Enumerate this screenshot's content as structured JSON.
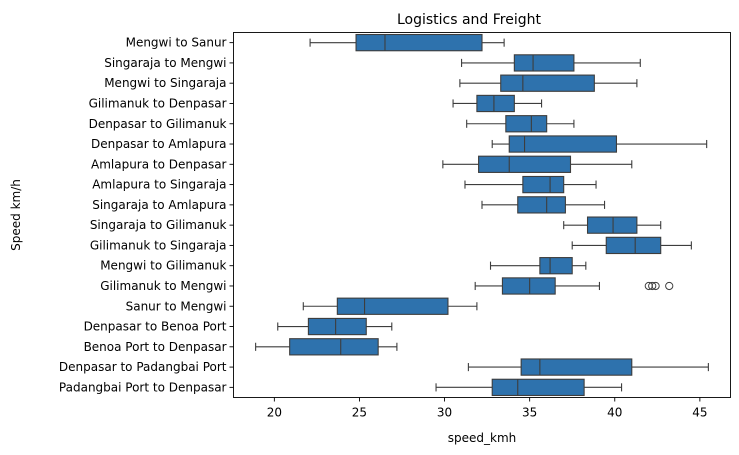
{
  "chart_data": {
    "type": "boxplot",
    "orientation": "horizontal",
    "title": "Logistics and Freight",
    "xlabel": "speed_kmh",
    "ylabel": "Speed km/h",
    "xlim": [
      17.6,
      46.8
    ],
    "xticks": [
      20,
      25,
      30,
      35,
      40,
      45
    ],
    "grid": false,
    "colors": {
      "box_fill": "#2e72ad",
      "line": "#3d3d3d"
    },
    "categories": [
      "Mengwi to Sanur",
      "Singaraja to Mengwi",
      "Mengwi to Singaraja",
      "Gilimanuk to Denpasar",
      "Denpasar to Gilimanuk",
      "Denpasar to Amlapura",
      "Amlapura to Denpasar",
      "Amlapura to Singaraja",
      "Singaraja to Amlapura",
      "Singaraja to Gilimanuk",
      "Gilimanuk to Singaraja",
      "Mengwi to Gilimanuk",
      "Gilimanuk to Mengwi",
      "Sanur to Mengwi",
      "Denpasar to Benoa Port",
      "Benoa Port to Denpasar",
      "Denpasar to Padangbai Port",
      "Padangbai Port to Denpasar"
    ],
    "boxes": [
      {
        "min": 22.1,
        "q1": 24.8,
        "median": 26.5,
        "q3": 32.2,
        "max": 33.5,
        "outliers": []
      },
      {
        "min": 31.0,
        "q1": 34.1,
        "median": 35.2,
        "q3": 37.6,
        "max": 41.5,
        "outliers": []
      },
      {
        "min": 30.9,
        "q1": 33.3,
        "median": 34.6,
        "q3": 38.8,
        "max": 41.3,
        "outliers": []
      },
      {
        "min": 30.5,
        "q1": 31.9,
        "median": 32.9,
        "q3": 34.1,
        "max": 35.7,
        "outliers": []
      },
      {
        "min": 31.3,
        "q1": 33.6,
        "median": 35.1,
        "q3": 36.0,
        "max": 37.6,
        "outliers": []
      },
      {
        "min": 32.8,
        "q1": 33.8,
        "median": 34.7,
        "q3": 40.1,
        "max": 45.4,
        "outliers": []
      },
      {
        "min": 29.9,
        "q1": 32.0,
        "median": 33.8,
        "q3": 37.4,
        "max": 41.0,
        "outliers": []
      },
      {
        "min": 31.2,
        "q1": 34.6,
        "median": 36.2,
        "q3": 37.0,
        "max": 38.9,
        "outliers": []
      },
      {
        "min": 32.2,
        "q1": 34.3,
        "median": 36.0,
        "q3": 37.1,
        "max": 39.4,
        "outliers": []
      },
      {
        "min": 37.0,
        "q1": 38.4,
        "median": 39.9,
        "q3": 41.3,
        "max": 42.7,
        "outliers": []
      },
      {
        "min": 37.5,
        "q1": 39.5,
        "median": 41.2,
        "q3": 42.7,
        "max": 44.5,
        "outliers": []
      },
      {
        "min": 32.7,
        "q1": 35.6,
        "median": 36.2,
        "q3": 37.5,
        "max": 38.3,
        "outliers": []
      },
      {
        "min": 31.8,
        "q1": 33.4,
        "median": 35.0,
        "q3": 36.5,
        "max": 39.1,
        "outliers": [
          42.0,
          42.2,
          42.4,
          43.2
        ]
      },
      {
        "min": 21.7,
        "q1": 23.7,
        "median": 25.3,
        "q3": 30.2,
        "max": 31.9,
        "outliers": []
      },
      {
        "min": 20.2,
        "q1": 22.0,
        "median": 23.6,
        "q3": 25.4,
        "max": 26.9,
        "outliers": []
      },
      {
        "min": 18.9,
        "q1": 20.9,
        "median": 23.9,
        "q3": 26.1,
        "max": 27.2,
        "outliers": []
      },
      {
        "min": 31.4,
        "q1": 34.5,
        "median": 35.6,
        "q3": 41.0,
        "max": 45.5,
        "outliers": []
      },
      {
        "min": 29.5,
        "q1": 32.8,
        "median": 34.3,
        "q3": 38.2,
        "max": 40.4,
        "outliers": []
      }
    ]
  }
}
